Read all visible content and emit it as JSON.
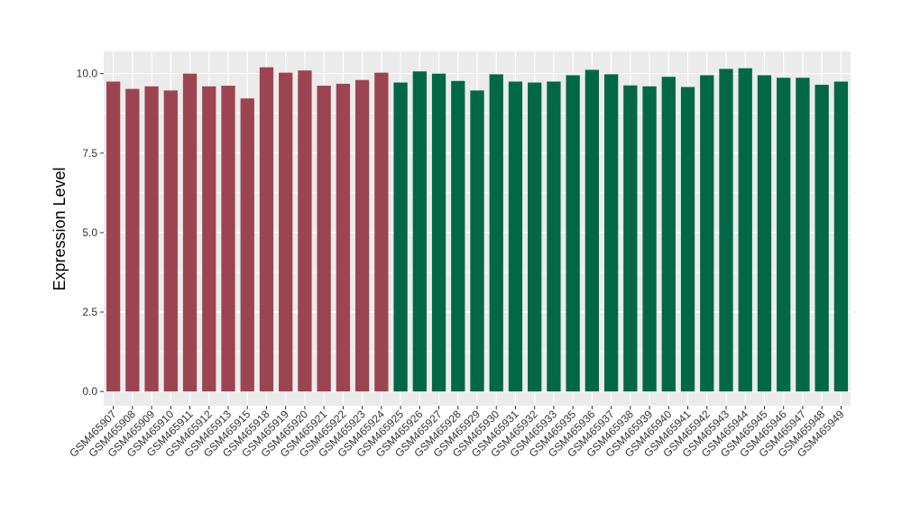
{
  "chart_data": {
    "type": "bar",
    "title": "",
    "xlabel": "",
    "ylabel": "Expression Level",
    "ylim": [
      -0.45,
      10.7
    ],
    "yticks": [
      0.0,
      2.5,
      5.0,
      7.5,
      10.0
    ],
    "ytick_labels": [
      "0.0",
      "2.5",
      "5.0",
      "7.5",
      "10.0"
    ],
    "grid": true,
    "legend": "none",
    "colors": {
      "panel": "#ebebeb",
      "grid": "#ffffff",
      "group_a": "#9c4452",
      "group_b": "#006846"
    },
    "categories": [
      "GSM465907",
      "GSM465908",
      "GSM465909",
      "GSM465910",
      "GSM465911",
      "GSM465912",
      "GSM465913",
      "GSM465915",
      "GSM465918",
      "GSM465919",
      "GSM465920",
      "GSM465921",
      "GSM465922",
      "GSM465923",
      "GSM465924",
      "GSM465925",
      "GSM465926",
      "GSM465927",
      "GSM465928",
      "GSM465929",
      "GSM465930",
      "GSM465931",
      "GSM465932",
      "GSM465933",
      "GSM465935",
      "GSM465936",
      "GSM465937",
      "GSM465938",
      "GSM465939",
      "GSM465940",
      "GSM465941",
      "GSM465942",
      "GSM465943",
      "GSM465944",
      "GSM465945",
      "GSM465946",
      "GSM465947",
      "GSM465948",
      "GSM465949"
    ],
    "values": [
      9.75,
      9.52,
      9.6,
      9.47,
      10.0,
      9.6,
      9.62,
      9.22,
      10.2,
      10.03,
      10.1,
      9.62,
      9.68,
      9.8,
      10.03,
      9.72,
      10.07,
      10.0,
      9.77,
      9.47,
      9.98,
      9.75,
      9.72,
      9.75,
      9.95,
      10.12,
      9.98,
      9.63,
      9.6,
      9.9,
      9.58,
      9.95,
      10.15,
      10.17,
      9.95,
      9.87,
      9.87,
      9.65,
      9.75
    ],
    "groups": [
      "a",
      "a",
      "a",
      "a",
      "a",
      "a",
      "a",
      "a",
      "a",
      "a",
      "a",
      "a",
      "a",
      "a",
      "a",
      "b",
      "b",
      "b",
      "b",
      "b",
      "b",
      "b",
      "b",
      "b",
      "b",
      "b",
      "b",
      "b",
      "b",
      "b",
      "b",
      "b",
      "b",
      "b",
      "b",
      "b",
      "b",
      "b",
      "b"
    ]
  }
}
